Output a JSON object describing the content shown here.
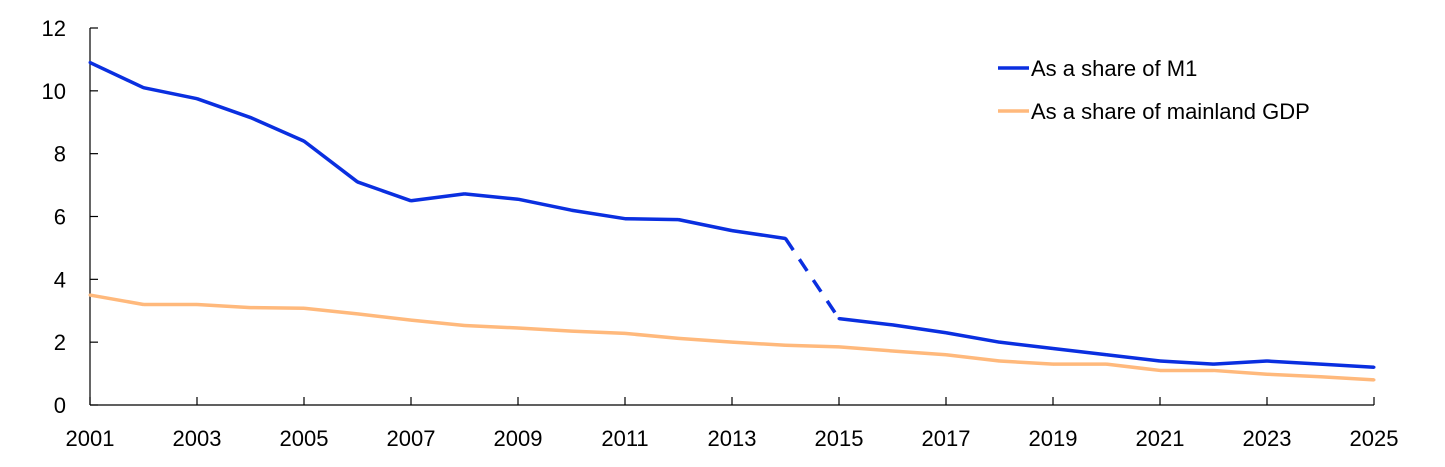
{
  "chart_data": {
    "type": "line",
    "title": "",
    "xlabel": "",
    "ylabel": "",
    "x_ticks": [
      "2001",
      "2003",
      "2005",
      "2007",
      "2009",
      "2011",
      "2013",
      "2015",
      "2017",
      "2019",
      "2021",
      "2023",
      "2025"
    ],
    "y_ticks": [
      "0",
      "2",
      "4",
      "6",
      "8",
      "10",
      "12"
    ],
    "xlim": [
      2001,
      2025
    ],
    "ylim": [
      0,
      12
    ],
    "grid": false,
    "legend_position": "top-right",
    "series": [
      {
        "name": "As a share of M1",
        "color": "#0a2fe0",
        "x": [
          2001,
          2002,
          2003,
          2004,
          2005,
          2006,
          2007,
          2008,
          2009,
          2010,
          2011,
          2012,
          2013,
          2014,
          2015,
          2016,
          2017,
          2018,
          2019,
          2020,
          2021,
          2022,
          2023,
          2024,
          2025
        ],
        "values": [
          10.9,
          10.1,
          9.75,
          9.15,
          8.4,
          7.1,
          6.5,
          6.72,
          6.55,
          6.2,
          5.93,
          5.9,
          5.55,
          5.3,
          2.75,
          2.55,
          2.3,
          2.0,
          1.8,
          1.6,
          1.4,
          1.3,
          1.4,
          1.3,
          1.2
        ],
        "dashed_segments": [
          [
            2014,
            2015
          ]
        ]
      },
      {
        "name": "As a share of mainland GDP",
        "color": "#ffb97c",
        "x": [
          2001,
          2002,
          2003,
          2004,
          2005,
          2006,
          2007,
          2008,
          2009,
          2010,
          2011,
          2012,
          2013,
          2014,
          2015,
          2016,
          2017,
          2018,
          2019,
          2020,
          2021,
          2022,
          2023,
          2024,
          2025
        ],
        "values": [
          3.5,
          3.2,
          3.2,
          3.1,
          3.08,
          2.9,
          2.7,
          2.53,
          2.45,
          2.35,
          2.28,
          2.12,
          2.0,
          1.9,
          1.85,
          1.72,
          1.6,
          1.4,
          1.3,
          1.3,
          1.1,
          1.1,
          0.98,
          0.9,
          0.8
        ]
      }
    ]
  }
}
